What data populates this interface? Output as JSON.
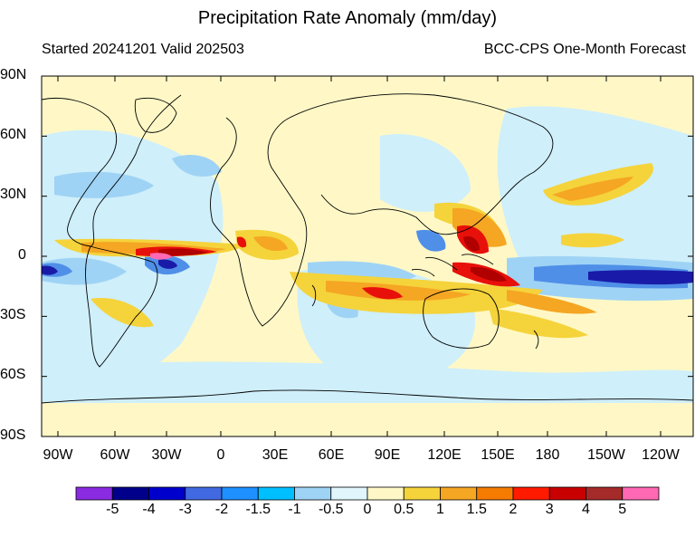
{
  "title": "Precipitation Rate Anomaly (mm/day)",
  "subtitle_left": "Started 20241201  Valid 202503",
  "subtitle_right": "BCC-CPS One-Month Forecast",
  "y_ticks": [
    "90N",
    "60N",
    "30N",
    "0",
    "30S",
    "60S",
    "90S"
  ],
  "x_ticks": [
    "90W",
    "60W",
    "30W",
    "0",
    "30E",
    "60E",
    "90E",
    "120E",
    "150E",
    "180",
    "150W",
    "120W"
  ],
  "colorbar": {
    "labels": [
      "-5",
      "-4",
      "-3",
      "-2",
      "-1.5",
      "-1",
      "-0.5",
      "0",
      "0.5",
      "1",
      "1.5",
      "2",
      "3",
      "4",
      "5"
    ],
    "colors": [
      "#8a2be2",
      "#00008b",
      "#0000cd",
      "#4169e1",
      "#1e90ff",
      "#00bfff",
      "#9fd3f5",
      "#e0f5fc",
      "#fff8c6",
      "#f5d33b",
      "#f5a623",
      "#f57c00",
      "#ff1a00",
      "#c80000",
      "#a52a2a",
      "#ff69b4"
    ]
  },
  "map_colors": {
    "background": "#fff8c6",
    "coast": "#000000",
    "light_blue": "#cfeffa",
    "mid_blue": "#9fd3f5",
    "blue": "#4f8fe8",
    "dark_blue": "#1a1aa8",
    "yellow": "#f5d33b",
    "orange": "#f5a623",
    "red": "#e8100a",
    "dark_red": "#b00000",
    "pink": "#ff69b4"
  }
}
